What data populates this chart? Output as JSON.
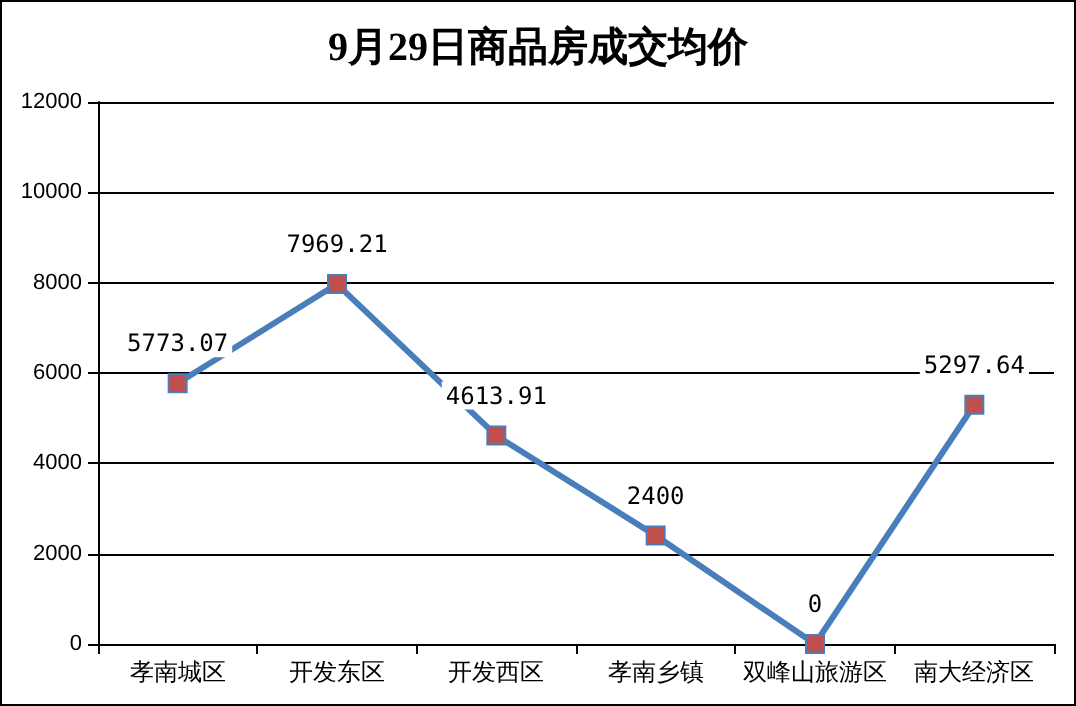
{
  "chart_data": {
    "type": "line",
    "title": "9月29日商品房成交均价",
    "categories": [
      "孝南城区",
      "开发东区",
      "开发西区",
      "孝南乡镇",
      "双峰山旅游区",
      "南大经济区"
    ],
    "series": [
      {
        "color": "#4a7ebb",
        "values": [
          5773.07,
          7969.21,
          4613.91,
          2400,
          0,
          5297.64
        ]
      }
    ],
    "ylim": [
      0,
      12000
    ],
    "yticks": [
      0,
      2000,
      4000,
      6000,
      8000,
      10000,
      12000
    ],
    "grid": "y",
    "marker": "square",
    "line_style": "solid",
    "data_labels": true
  }
}
